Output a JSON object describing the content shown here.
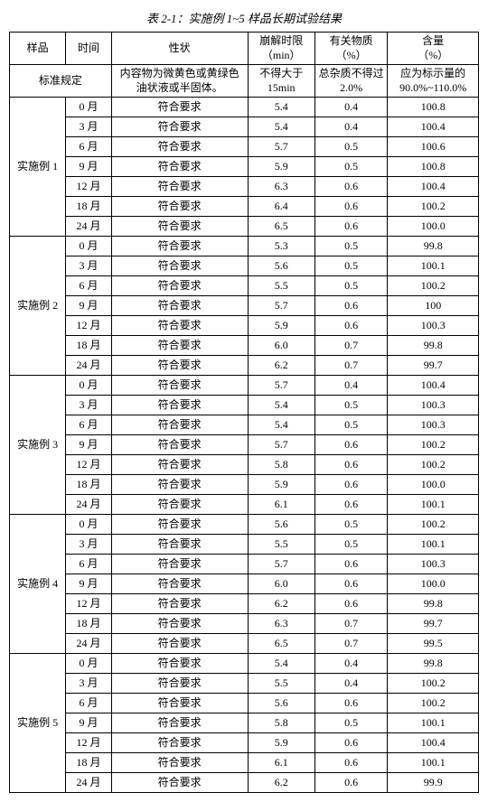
{
  "title": "表 2-1：实施例 1~5 样品长期试验结果",
  "headers": {
    "sample": "样品",
    "time": "时间",
    "property": "性状",
    "disintegration": "崩解时限\n（min）",
    "substances": "有关物质\n（%）",
    "amount": "含量\n（%）"
  },
  "standard": {
    "label": "标准规定",
    "property": "内容物为微黄色或黄绿色\n油状液或半固体。",
    "disintegration": "不得大于\n15min",
    "substances": "总杂质不得过\n2.0%",
    "amount": "应为标示量的\n90.0%~110.0%"
  },
  "conform": "符合要求",
  "groups": [
    {
      "name": "实施例 1",
      "rows": [
        {
          "time": "0 月",
          "dis": "5.4",
          "sub": "0.4",
          "amt": "100.8"
        },
        {
          "time": "3 月",
          "dis": "5.4",
          "sub": "0.4",
          "amt": "100.4"
        },
        {
          "time": "6 月",
          "dis": "5.7",
          "sub": "0.5",
          "amt": "100.6"
        },
        {
          "time": "9 月",
          "dis": "5.9",
          "sub": "0.5",
          "amt": "100.8"
        },
        {
          "time": "12 月",
          "dis": "6.3",
          "sub": "0.6",
          "amt": "100.4"
        },
        {
          "time": "18 月",
          "dis": "6.4",
          "sub": "0.6",
          "amt": "100.2"
        },
        {
          "time": "24 月",
          "dis": "6.5",
          "sub": "0.6",
          "amt": "100.0"
        }
      ]
    },
    {
      "name": "实施例 2",
      "rows": [
        {
          "time": "0 月",
          "dis": "5.3",
          "sub": "0.5",
          "amt": "99.8"
        },
        {
          "time": "3 月",
          "dis": "5.6",
          "sub": "0.5",
          "amt": "100.1"
        },
        {
          "time": "6 月",
          "dis": "5.5",
          "sub": "0.5",
          "amt": "100.2"
        },
        {
          "time": "9 月",
          "dis": "5.7",
          "sub": "0.6",
          "amt": "100"
        },
        {
          "time": "12 月",
          "dis": "5.9",
          "sub": "0.6",
          "amt": "100.3"
        },
        {
          "time": "18 月",
          "dis": "6.0",
          "sub": "0.7",
          "amt": "99.8"
        },
        {
          "time": "24 月",
          "dis": "6.2",
          "sub": "0.7",
          "amt": "99.7"
        }
      ]
    },
    {
      "name": "实施例 3",
      "rows": [
        {
          "time": "0 月",
          "dis": "5.7",
          "sub": "0.4",
          "amt": "100.4"
        },
        {
          "time": "3 月",
          "dis": "5.4",
          "sub": "0.5",
          "amt": "100.3"
        },
        {
          "time": "6 月",
          "dis": "5.4",
          "sub": "0.5",
          "amt": "100.3"
        },
        {
          "time": "9 月",
          "dis": "5.7",
          "sub": "0.6",
          "amt": "100.2"
        },
        {
          "time": "12 月",
          "dis": "5.8",
          "sub": "0.6",
          "amt": "100.2"
        },
        {
          "time": "18 月",
          "dis": "5.9",
          "sub": "0.6",
          "amt": "100.0"
        },
        {
          "time": "24 月",
          "dis": "6.1",
          "sub": "0.6",
          "amt": "100.1"
        }
      ]
    },
    {
      "name": "实施例 4",
      "rows": [
        {
          "time": "0 月",
          "dis": "5.6",
          "sub": "0.5",
          "amt": "100.2"
        },
        {
          "time": "3 月",
          "dis": "5.5",
          "sub": "0.5",
          "amt": "100.1"
        },
        {
          "time": "6 月",
          "dis": "5.7",
          "sub": "0.6",
          "amt": "100.3"
        },
        {
          "time": "9 月",
          "dis": "6.0",
          "sub": "0.6",
          "amt": "100.0"
        },
        {
          "time": "12 月",
          "dis": "6.2",
          "sub": "0.6",
          "amt": "99.8"
        },
        {
          "time": "18 月",
          "dis": "6.3",
          "sub": "0.7",
          "amt": "99.7"
        },
        {
          "time": "24 月",
          "dis": "6.5",
          "sub": "0.7",
          "amt": "99.5"
        }
      ]
    },
    {
      "name": "实施例 5",
      "rows": [
        {
          "time": "0 月",
          "dis": "5.4",
          "sub": "0.4",
          "amt": "99.8"
        },
        {
          "time": "3 月",
          "dis": "5.5",
          "sub": "0.4",
          "amt": "100.2"
        },
        {
          "time": "6 月",
          "dis": "5.6",
          "sub": "0.6",
          "amt": "100.2"
        },
        {
          "time": "9 月",
          "dis": "5.8",
          "sub": "0.5",
          "amt": "100.1"
        },
        {
          "time": "12 月",
          "dis": "5.9",
          "sub": "0.6",
          "amt": "100.4"
        },
        {
          "time": "18 月",
          "dis": "6.1",
          "sub": "0.6",
          "amt": "100.1"
        },
        {
          "time": "24 月",
          "dis": "6.2",
          "sub": "0.6",
          "amt": "99.9"
        }
      ]
    }
  ]
}
